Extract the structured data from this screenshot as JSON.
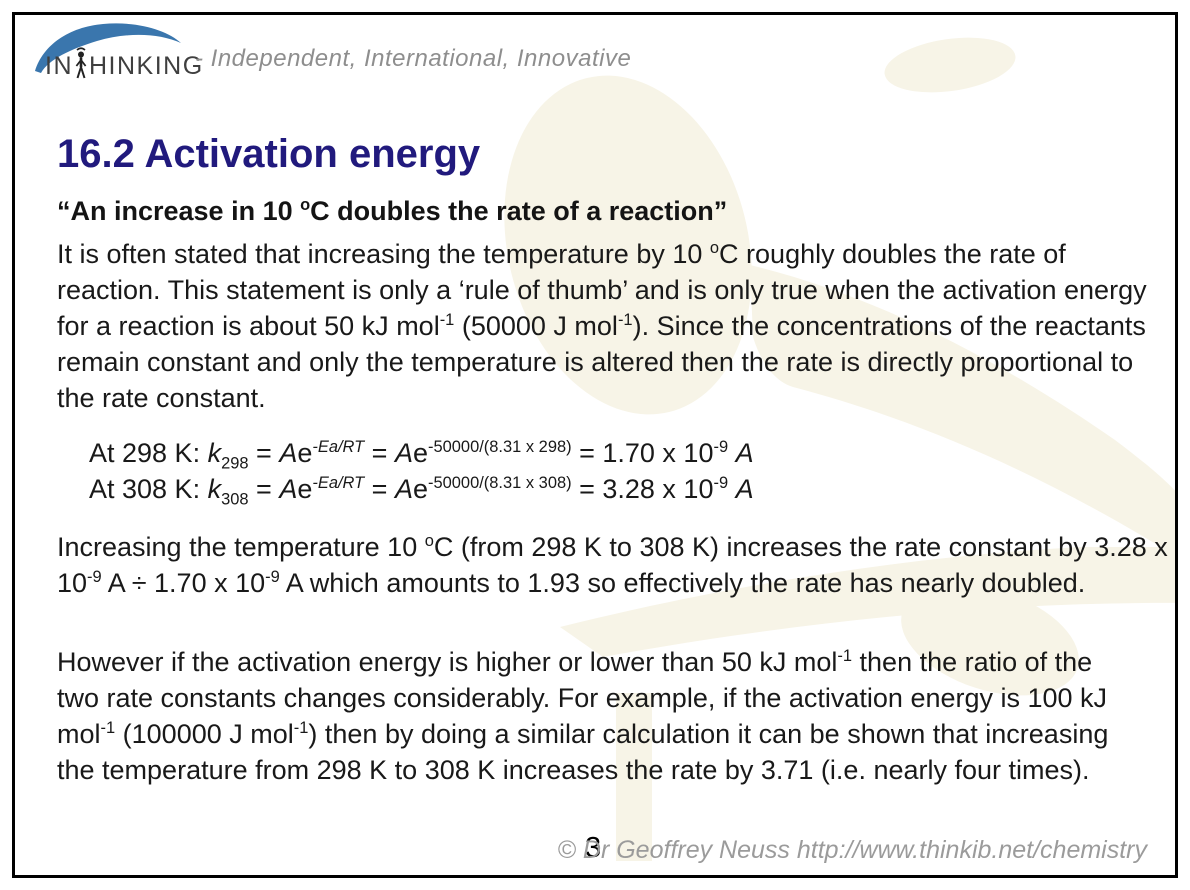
{
  "logo": {
    "brand_prefix": "IN",
    "brand_suffix": "HINKING",
    "tagline": "- Independent, International, Innovative"
  },
  "heading": "16.2 Activation energy",
  "quote": [
    {
      "t": "“An increase in 10 "
    },
    {
      "t": "o",
      "style": "sup"
    },
    {
      "t": "C doubles the rate of a reaction”"
    }
  ],
  "paragraphs": {
    "intro": [
      {
        "t": "It is often stated that increasing the temperature by 10 "
      },
      {
        "t": "o",
        "style": "sup"
      },
      {
        "t": "C roughly doubles the rate of reaction. This statement is only a ‘rule of thumb’ and is only true when the activation energy for a reaction is about 50 kJ mol"
      },
      {
        "t": "-1",
        "style": "sup"
      },
      {
        "t": " (50000 J mol"
      },
      {
        "t": "-1",
        "style": "sup"
      },
      {
        "t": "). Since the concentrations of the reactants remain constant and only the temperature is altered then the rate is directly proportional to the rate constant."
      }
    ],
    "result": [
      {
        "t": "Increasing the temperature 10 "
      },
      {
        "t": "o",
        "style": "sup"
      },
      {
        "t": "C (from 298 K to 308 K) increases the rate constant by 3.28 x 10"
      },
      {
        "t": "-9",
        "style": "sup"
      },
      {
        "t": " A ÷ 1.70 x 10"
      },
      {
        "t": "-9",
        "style": "sup"
      },
      {
        "t": " A which amounts to 1.93 so effectively the rate has nearly doubled."
      }
    ],
    "however": [
      {
        "t": "However if the activation energy is higher or lower than 50 kJ mol"
      },
      {
        "t": "-1",
        "style": "sup"
      },
      {
        "t": " then the ratio of the two rate constants changes considerably. For example, if the activation energy is 100 kJ mol"
      },
      {
        "t": "-1",
        "style": "sup"
      },
      {
        "t": " (100000 J mol"
      },
      {
        "t": "-1",
        "style": "sup"
      },
      {
        "t": ") then by doing a similar calculation it can be shown that increasing the temperature from 298 K to 308 K increases the rate by 3.71 (i.e. nearly four times)."
      }
    ]
  },
  "equations": {
    "line1": [
      {
        "t": "At 298 K: "
      },
      {
        "t": "k",
        "style": "i"
      },
      {
        "t": "298",
        "style": "sub"
      },
      {
        "t": " = "
      },
      {
        "t": "A",
        "style": "i"
      },
      {
        "t": "e"
      },
      {
        "t": "-Ea/RT",
        "style": "supi"
      },
      {
        "t": " = "
      },
      {
        "t": "A",
        "style": "i"
      },
      {
        "t": "e"
      },
      {
        "t": "-50000/(8.31 x 298)",
        "style": "sup"
      },
      {
        "t": " = 1.70 x 10"
      },
      {
        "t": "-9",
        "style": "sup"
      },
      {
        "t": " "
      },
      {
        "t": "A",
        "style": "i"
      }
    ],
    "line2": [
      {
        "t": "At 308 K: "
      },
      {
        "t": "k",
        "style": "i"
      },
      {
        "t": "308",
        "style": "sub"
      },
      {
        "t": " = "
      },
      {
        "t": "A",
        "style": "i"
      },
      {
        "t": "e"
      },
      {
        "t": "-Ea/RT",
        "style": "supi"
      },
      {
        "t": " = "
      },
      {
        "t": "A",
        "style": "i"
      },
      {
        "t": "e"
      },
      {
        "t": "-50000/(8.31 x 308)",
        "style": "sup"
      },
      {
        "t": " = 3.28 x 10"
      },
      {
        "t": "-9",
        "style": "sup"
      },
      {
        "t": " "
      },
      {
        "t": "A",
        "style": "i"
      }
    ]
  },
  "footer": {
    "page_number": "3",
    "copyright": "© Dr Geoffrey Neuss http://www.thinkib.net/chemistry"
  },
  "colors": {
    "heading_indigo": "#211a7d",
    "logo_swoosh_blue": "#3a76ad",
    "tagline_gray": "#8e8e8e",
    "body_text": "#191919",
    "copyright_gray": "#9b9b9b",
    "watermark_cream": "#f7f4e7",
    "page_border": "#000000"
  },
  "icons": {
    "logo_swoosh": "swoosh-arc-icon",
    "logo_person": "thinking-person-icon",
    "watermark": "thinking-figure-watermark"
  }
}
